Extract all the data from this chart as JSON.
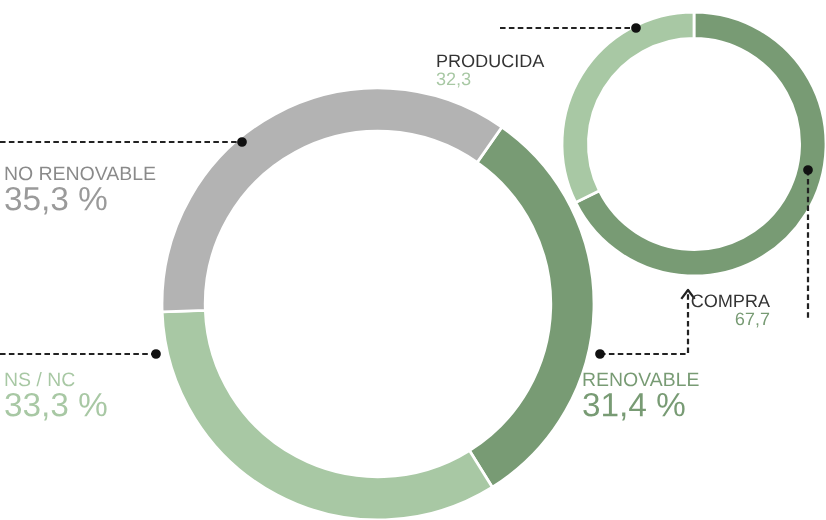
{
  "chart_data": [
    {
      "type": "donut",
      "categories": [
        "RENOVABLE",
        "NS / NC",
        "NO RENOVABLE"
      ],
      "values": [
        31.4,
        33.3,
        35.3
      ],
      "colors": [
        "#789b74",
        "#a8c8a4",
        "#b3b3b3"
      ],
      "value_labels": [
        "31,4 %",
        "33,3 %",
        "35,3 %"
      ]
    },
    {
      "type": "donut",
      "categories": [
        "COMPRA",
        "PRODUCIDA"
      ],
      "values": [
        67.7,
        32.3
      ],
      "colors": [
        "#789b74",
        "#a8c8a4"
      ],
      "value_labels": [
        "67,7",
        "32,3"
      ]
    }
  ]
}
